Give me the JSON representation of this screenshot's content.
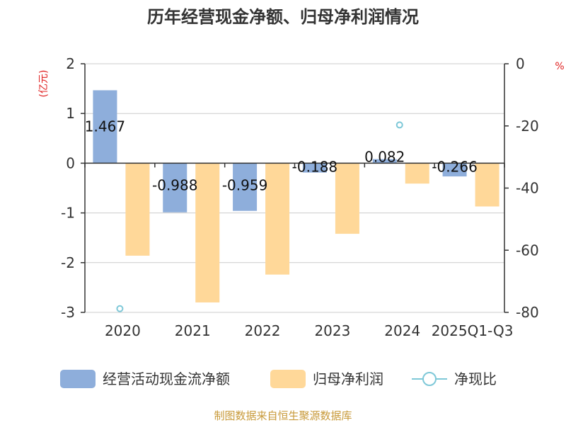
{
  "chart_data": {
    "type": "bar",
    "title": "历年经营现金净额、归母净利润情况",
    "categories": [
      "2020",
      "2021",
      "2022",
      "2023",
      "2024",
      "2025Q1-Q3"
    ],
    "left_unit": "(亿元)",
    "right_unit": "%",
    "ylim_left": [
      -3,
      2
    ],
    "yticks_left": [
      "2",
      "1",
      "0",
      "-1",
      "-2",
      "-3"
    ],
    "ylim_right": [
      -80,
      0
    ],
    "yticks_right": [
      "0",
      "-20",
      "-40",
      "-60",
      "-80"
    ],
    "grid": true,
    "legend_position": "bottom",
    "series": [
      {
        "name": "经营活动现金流净额",
        "axis": "left",
        "kind": "bar",
        "color": "#8eaedb",
        "values": [
          1.467,
          -0.988,
          -0.959,
          -0.188,
          0.082,
          -0.266
        ],
        "labels": [
          "1.467",
          "-0.988",
          "-0.959",
          "-0.188",
          "0.082",
          "-0.266"
        ]
      },
      {
        "name": "归母净利润",
        "axis": "left",
        "kind": "bar",
        "color": "#ffd899",
        "values": [
          -1.86,
          -2.8,
          -2.24,
          -1.42,
          -0.41,
          -0.87
        ]
      },
      {
        "name": "净现比",
        "axis": "right",
        "kind": "scatter",
        "color": "#7ec8d8",
        "values": [
          -78.8,
          null,
          null,
          null,
          -19.7,
          null
        ]
      }
    ],
    "axis_color": "#333333",
    "grid_color": "#cccccc",
    "unit_color": "#e02020",
    "source_color": "#c89a3a",
    "source": "制图数据来自恒生聚源数据库"
  }
}
